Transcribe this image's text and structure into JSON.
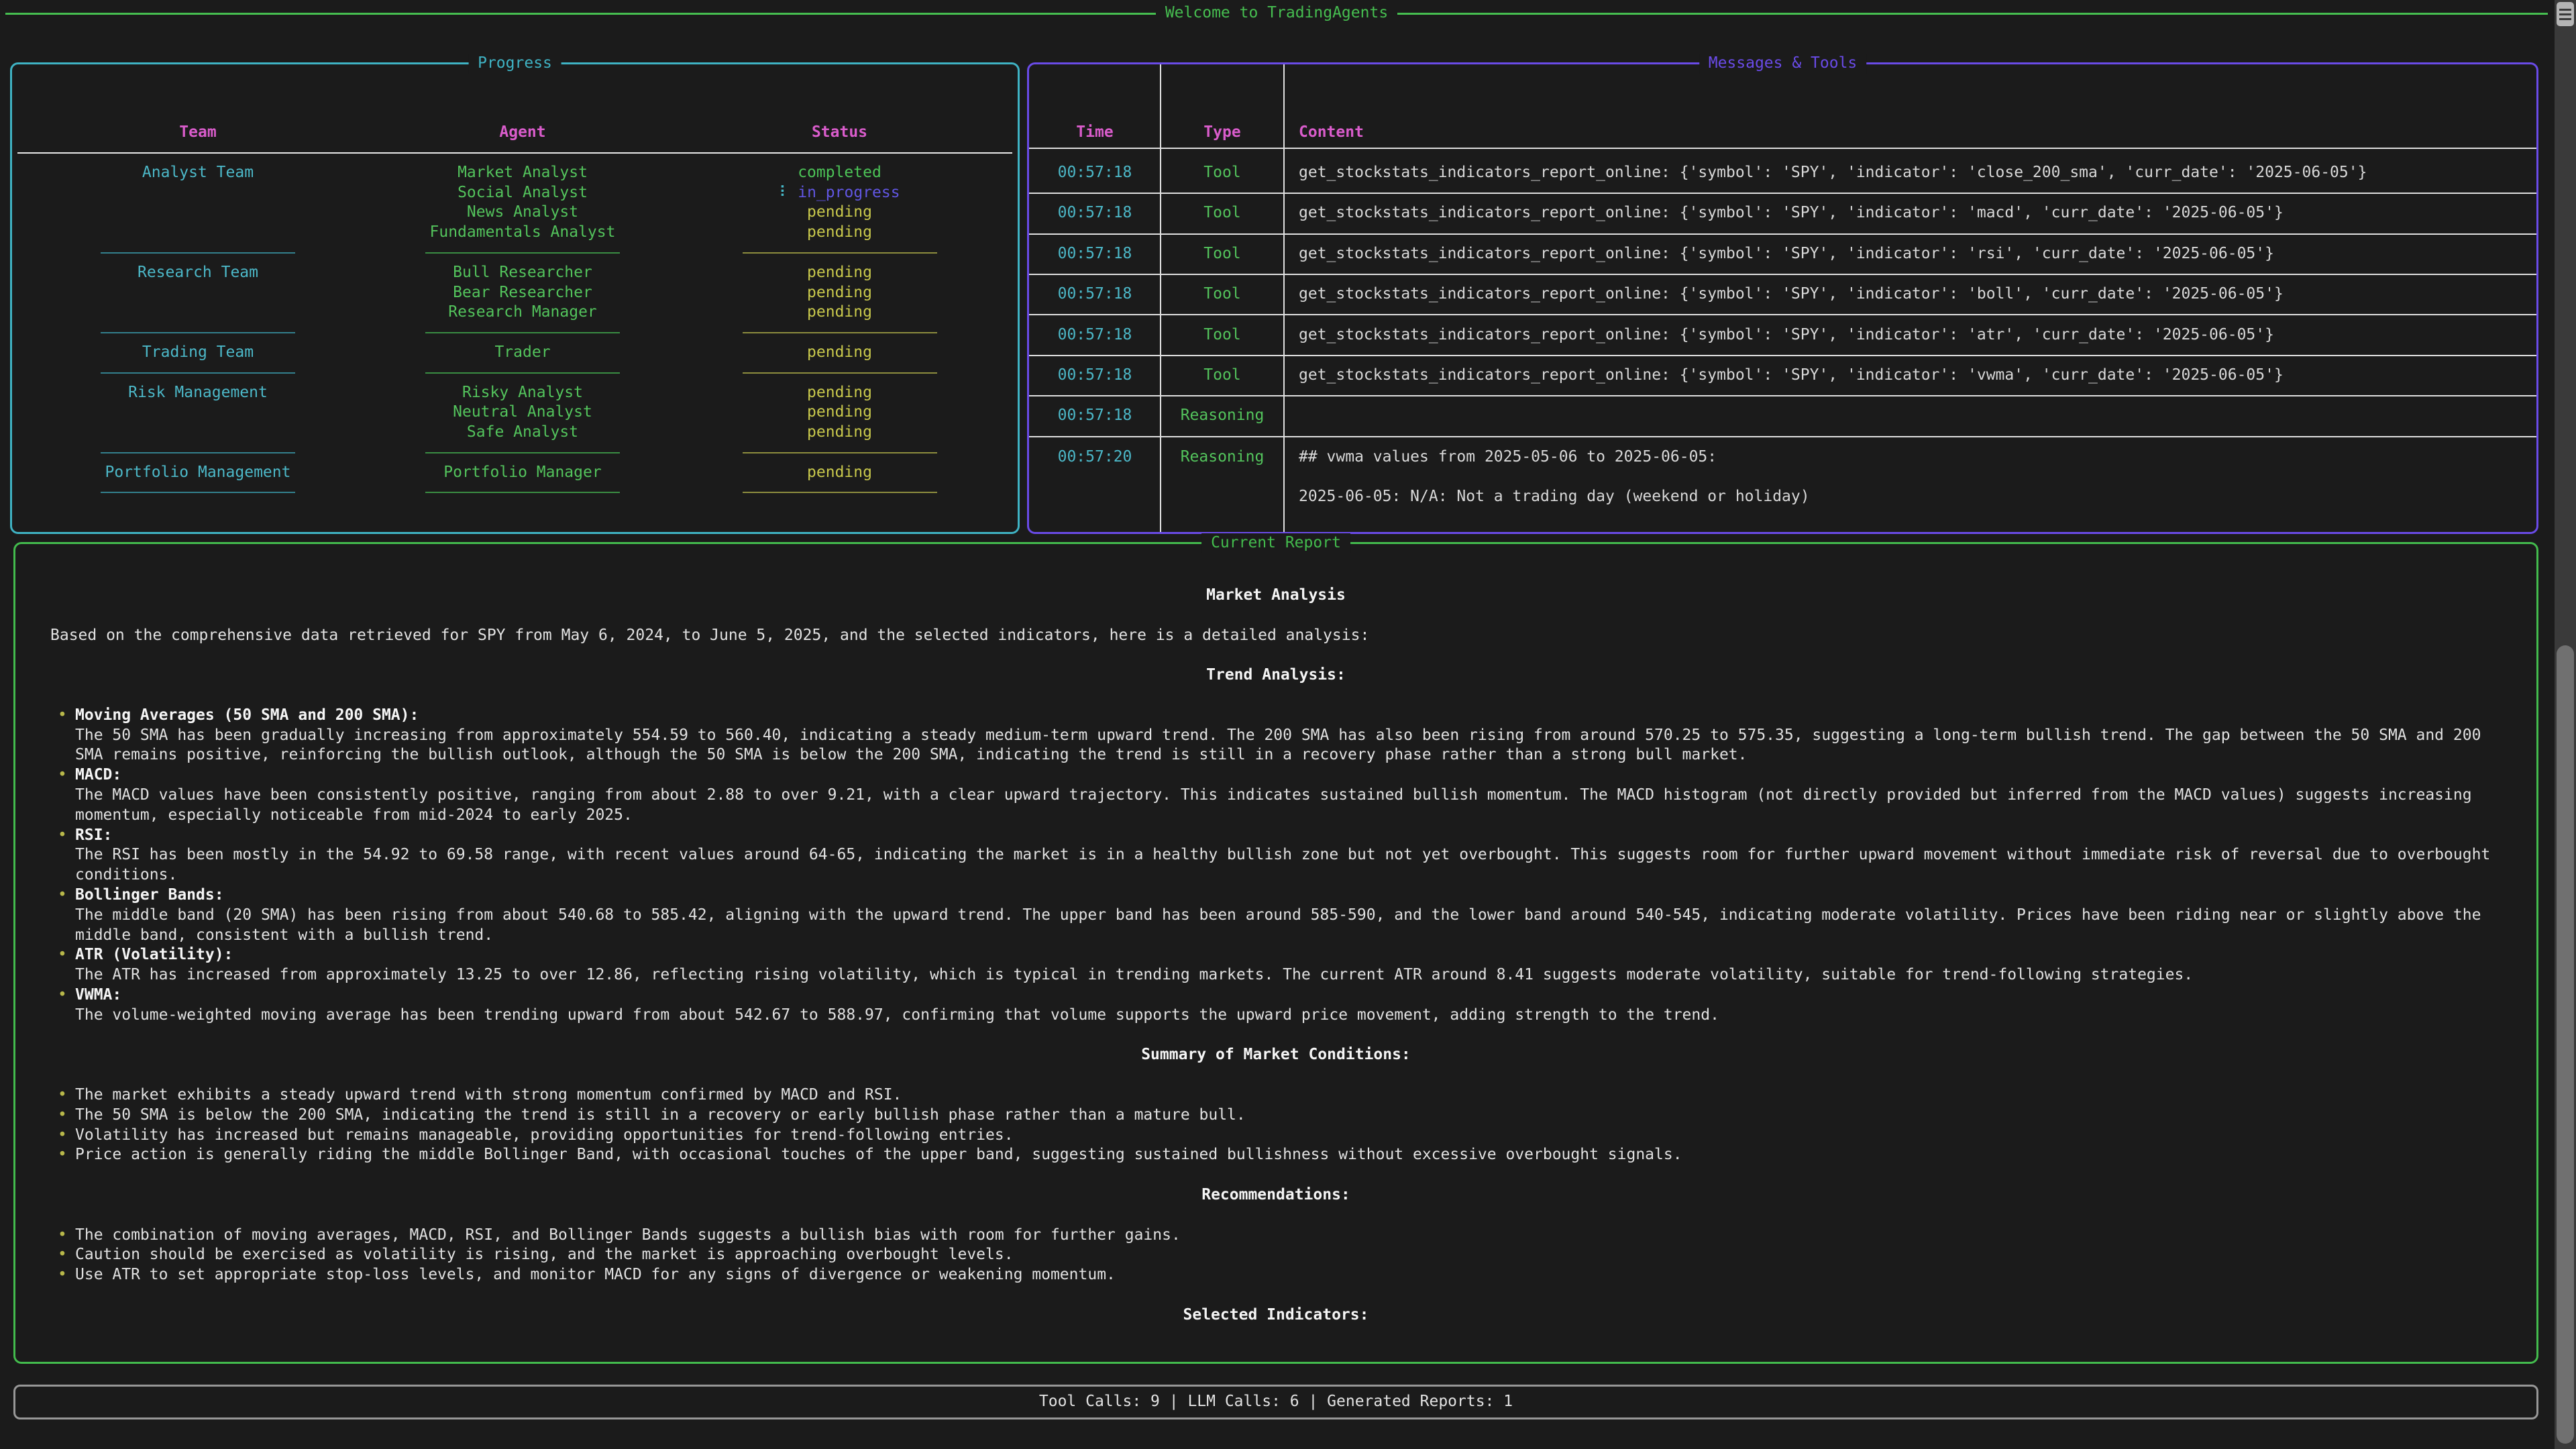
{
  "app": {
    "title": "Welcome to TradingAgents"
  },
  "colors": {
    "background": "#1b1b1b",
    "green": "#46be50",
    "cyan": "#3fb3c4",
    "magenta": "#d95ccb",
    "yellow": "#c9c94c",
    "purple": "#6a4be8",
    "in_progress": "#6156e2",
    "text": "#e2e2e2"
  },
  "progress": {
    "title": "Progress",
    "columns": [
      "Team",
      "Agent",
      "Status"
    ],
    "spinner_glyph": "⠇",
    "groups": [
      {
        "team": "Analyst Team",
        "agents": [
          {
            "name": "Market Analyst",
            "status": "completed"
          },
          {
            "name": "Social Analyst",
            "status": "in_progress"
          },
          {
            "name": "News Analyst",
            "status": "pending"
          },
          {
            "name": "Fundamentals Analyst",
            "status": "pending"
          }
        ]
      },
      {
        "team": "Research Team",
        "agents": [
          {
            "name": "Bull Researcher",
            "status": "pending"
          },
          {
            "name": "Bear Researcher",
            "status": "pending"
          },
          {
            "name": "Research Manager",
            "status": "pending"
          }
        ]
      },
      {
        "team": "Trading Team",
        "agents": [
          {
            "name": "Trader",
            "status": "pending"
          }
        ]
      },
      {
        "team": "Risk Management",
        "agents": [
          {
            "name": "Risky Analyst",
            "status": "pending"
          },
          {
            "name": "Neutral Analyst",
            "status": "pending"
          },
          {
            "name": "Safe Analyst",
            "status": "pending"
          }
        ]
      },
      {
        "team": "Portfolio Management",
        "agents": [
          {
            "name": "Portfolio Manager",
            "status": "pending"
          }
        ]
      }
    ]
  },
  "messages": {
    "title": "Messages & Tools",
    "columns": [
      "Time",
      "Type",
      "Content"
    ],
    "rows": [
      {
        "time": "00:57:18",
        "type": "Tool",
        "content": "get_stockstats_indicators_report_online: {'symbol': 'SPY', 'indicator': 'close_200_sma', 'curr_date': '2025-06-05'}"
      },
      {
        "time": "00:57:18",
        "type": "Tool",
        "content": "get_stockstats_indicators_report_online: {'symbol': 'SPY', 'indicator': 'macd', 'curr_date': '2025-06-05'}"
      },
      {
        "time": "00:57:18",
        "type": "Tool",
        "content": "get_stockstats_indicators_report_online: {'symbol': 'SPY', 'indicator': 'rsi', 'curr_date': '2025-06-05'}"
      },
      {
        "time": "00:57:18",
        "type": "Tool",
        "content": "get_stockstats_indicators_report_online: {'symbol': 'SPY', 'indicator': 'boll', 'curr_date': '2025-06-05'}"
      },
      {
        "time": "00:57:18",
        "type": "Tool",
        "content": "get_stockstats_indicators_report_online: {'symbol': 'SPY', 'indicator': 'atr', 'curr_date': '2025-06-05'}"
      },
      {
        "time": "00:57:18",
        "type": "Tool",
        "content": "get_stockstats_indicators_report_online: {'symbol': 'SPY', 'indicator': 'vwma', 'curr_date': '2025-06-05'}"
      },
      {
        "time": "00:57:18",
        "type": "Reasoning",
        "content": ""
      },
      {
        "time": "00:57:20",
        "type": "Reasoning",
        "content_lines": [
          "## vwma values from 2025-05-06 to 2025-06-05:",
          "",
          "2025-06-05: N/A: Not a trading day (weekend or holiday)"
        ]
      }
    ]
  },
  "report": {
    "title": "Current Report",
    "heading": "Market Analysis",
    "intro": "Based on the comprehensive data retrieved for SPY from May 6, 2024, to June 5, 2025, and the selected indicators, here is a detailed analysis:",
    "sections": [
      {
        "heading": "Trend Analysis:",
        "bullets": [
          {
            "title": "Moving Averages (50 SMA and 200 SMA):",
            "text": "The 50 SMA has been gradually increasing from approximately 554.59 to 560.40, indicating a steady medium-term upward trend. The 200 SMA has also been rising from around 570.25 to 575.35, suggesting a long-term bullish trend. The gap between the 50 SMA and 200 SMA remains positive, reinforcing the bullish outlook, although the 50 SMA is below the 200 SMA, indicating the trend is still in a recovery phase rather than a strong bull market."
          },
          {
            "title": "MACD:",
            "text": "The MACD values have been consistently positive, ranging from about 2.88 to over 9.21, with a clear upward trajectory. This indicates sustained bullish momentum. The MACD histogram (not directly provided but inferred from the MACD values) suggests increasing momentum, especially noticeable from mid-2024 to early 2025."
          },
          {
            "title": "RSI:",
            "text": "The RSI has been mostly in the 54.92 to 69.58 range, with recent values around 64-65, indicating the market is in a healthy bullish zone but not yet overbought. This suggests room for further upward movement without immediate risk of reversal due to overbought conditions."
          },
          {
            "title": "Bollinger Bands:",
            "text": "The middle band (20 SMA) has been rising from about 540.68 to 585.42, aligning with the upward trend. The upper band has been around 585-590, and the lower band around 540-545, indicating moderate volatility. Prices have been riding near or slightly above the middle band, consistent with a bullish trend."
          },
          {
            "title": "ATR (Volatility):",
            "text": "The ATR has increased from approximately 13.25 to over 12.86, reflecting rising volatility, which is typical in trending markets. The current ATR around 8.41 suggests moderate volatility, suitable for trend-following strategies."
          },
          {
            "title": "VWMA:",
            "text": "The volume-weighted moving average has been trending upward from about 542.67 to 588.97, confirming that volume supports the upward price movement, adding strength to the trend."
          }
        ]
      },
      {
        "heading": "Summary of Market Conditions:",
        "bullets": [
          "The market exhibits a steady upward trend with strong momentum confirmed by MACD and RSI.",
          "The 50 SMA is below the 200 SMA, indicating the trend is still in a recovery or early bullish phase rather than a mature bull.",
          "Volatility has increased but remains manageable, providing opportunities for trend-following entries.",
          "Price action is generally riding the middle Bollinger Band, with occasional touches of the upper band, suggesting sustained bullishness without excessive overbought signals."
        ]
      },
      {
        "heading": "Recommendations:",
        "bullets": [
          "The combination of moving averages, MACD, RSI, and Bollinger Bands suggests a bullish bias with room for further gains.",
          "Caution should be exercised as volatility is rising, and the market is approaching overbought levels.",
          "Use ATR to set appropriate stop-loss levels, and monitor MACD for any signs of divergence or weakening momentum."
        ]
      },
      {
        "heading": "Selected Indicators:",
        "bullets": []
      }
    ]
  },
  "stats": {
    "text": "Tool Calls: 9 | LLM Calls: 6 | Generated Reports: 1",
    "tool_calls": 9,
    "llm_calls": 6,
    "generated_reports": 1
  }
}
